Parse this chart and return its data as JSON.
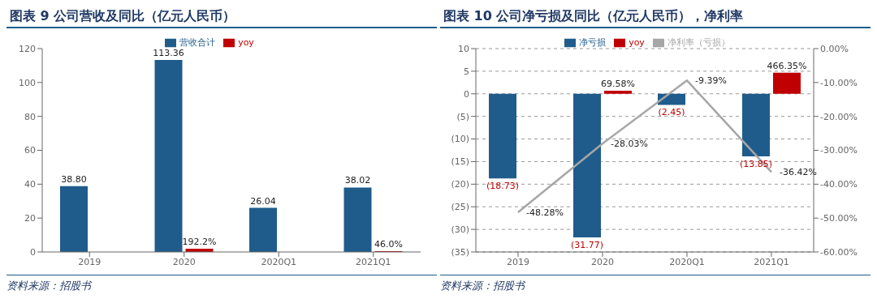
{
  "chart_data": [
    {
      "type": "bar",
      "title": "图表 9  公司营收及同比（亿元人民币）",
      "categories": [
        "2019",
        "2020",
        "2020Q1",
        "2021Q1"
      ],
      "series": [
        {
          "name": "营收合计",
          "color": "#1f5c8b",
          "values": [
            38.8,
            113.36,
            26.04,
            38.02
          ],
          "value_labels": [
            "38.80",
            "113.36",
            "26.04",
            "38.02"
          ]
        },
        {
          "name": "yoy",
          "color": "#c00000",
          "values": [
            null,
            1.922,
            null,
            0.46
          ],
          "value_labels": [
            null,
            "192.2%",
            null,
            "46.0%"
          ]
        }
      ],
      "ylim": [
        0,
        120
      ],
      "yticks": [
        0,
        20,
        40,
        60,
        80,
        100,
        120
      ],
      "legend": "top",
      "annotations": [
        "资料来源：招股书"
      ]
    },
    {
      "type": "bar",
      "title": "图表 10  公司净亏损及同比（亿元人民币），净利率",
      "categories": [
        "2019",
        "2020",
        "2020Q1",
        "2021Q1"
      ],
      "series": [
        {
          "name": "净亏损",
          "color": "#1f5c8b",
          "values": [
            -18.73,
            -31.77,
            -2.45,
            -13.85
          ],
          "value_labels": [
            "(18.73)",
            "(31.77)",
            "(2.45)",
            "(13.85)"
          ]
        },
        {
          "name": "yoy",
          "color": "#c00000",
          "values": [
            null,
            0.6958,
            null,
            4.6635
          ],
          "value_labels": [
            null,
            "69.58%",
            null,
            "466.35%"
          ]
        },
        {
          "name": "净利率（亏损）",
          "type": "line",
          "axis": "y2",
          "color": "#a6a6a6",
          "values": [
            -48.28,
            -28.03,
            -9.39,
            -36.42
          ],
          "value_labels": [
            "-48.28%",
            "-28.03%",
            "-9.39%",
            "-36.42%"
          ]
        }
      ],
      "ylim": [
        -35,
        10
      ],
      "yticks": [
        {
          "value": -35,
          "label": "(35)"
        },
        {
          "value": -30,
          "label": "(30)"
        },
        {
          "value": -25,
          "label": "(25)"
        },
        {
          "value": -20,
          "label": "(20)"
        },
        {
          "value": -15,
          "label": "(15)"
        },
        {
          "value": -10,
          "label": "(10)"
        },
        {
          "value": -5,
          "label": "(5)"
        },
        0,
        5,
        10
      ],
      "y2lim": [
        -60,
        0
      ],
      "y2ticks": [
        {
          "value": -60,
          "label": "-60.00%"
        },
        {
          "value": -50,
          "label": "-50.00%"
        },
        {
          "value": -40,
          "label": "-40.00%"
        },
        {
          "value": -30,
          "label": "-30.00%"
        },
        {
          "value": -20,
          "label": "-20.00%"
        },
        {
          "value": -10,
          "label": "-10.00%"
        },
        {
          "value": 0,
          "label": "0.00%"
        }
      ],
      "grid": "y",
      "marker": "none",
      "line_style": "solid",
      "legend": "top",
      "annotations": [
        "资料来源：招股书"
      ]
    }
  ]
}
